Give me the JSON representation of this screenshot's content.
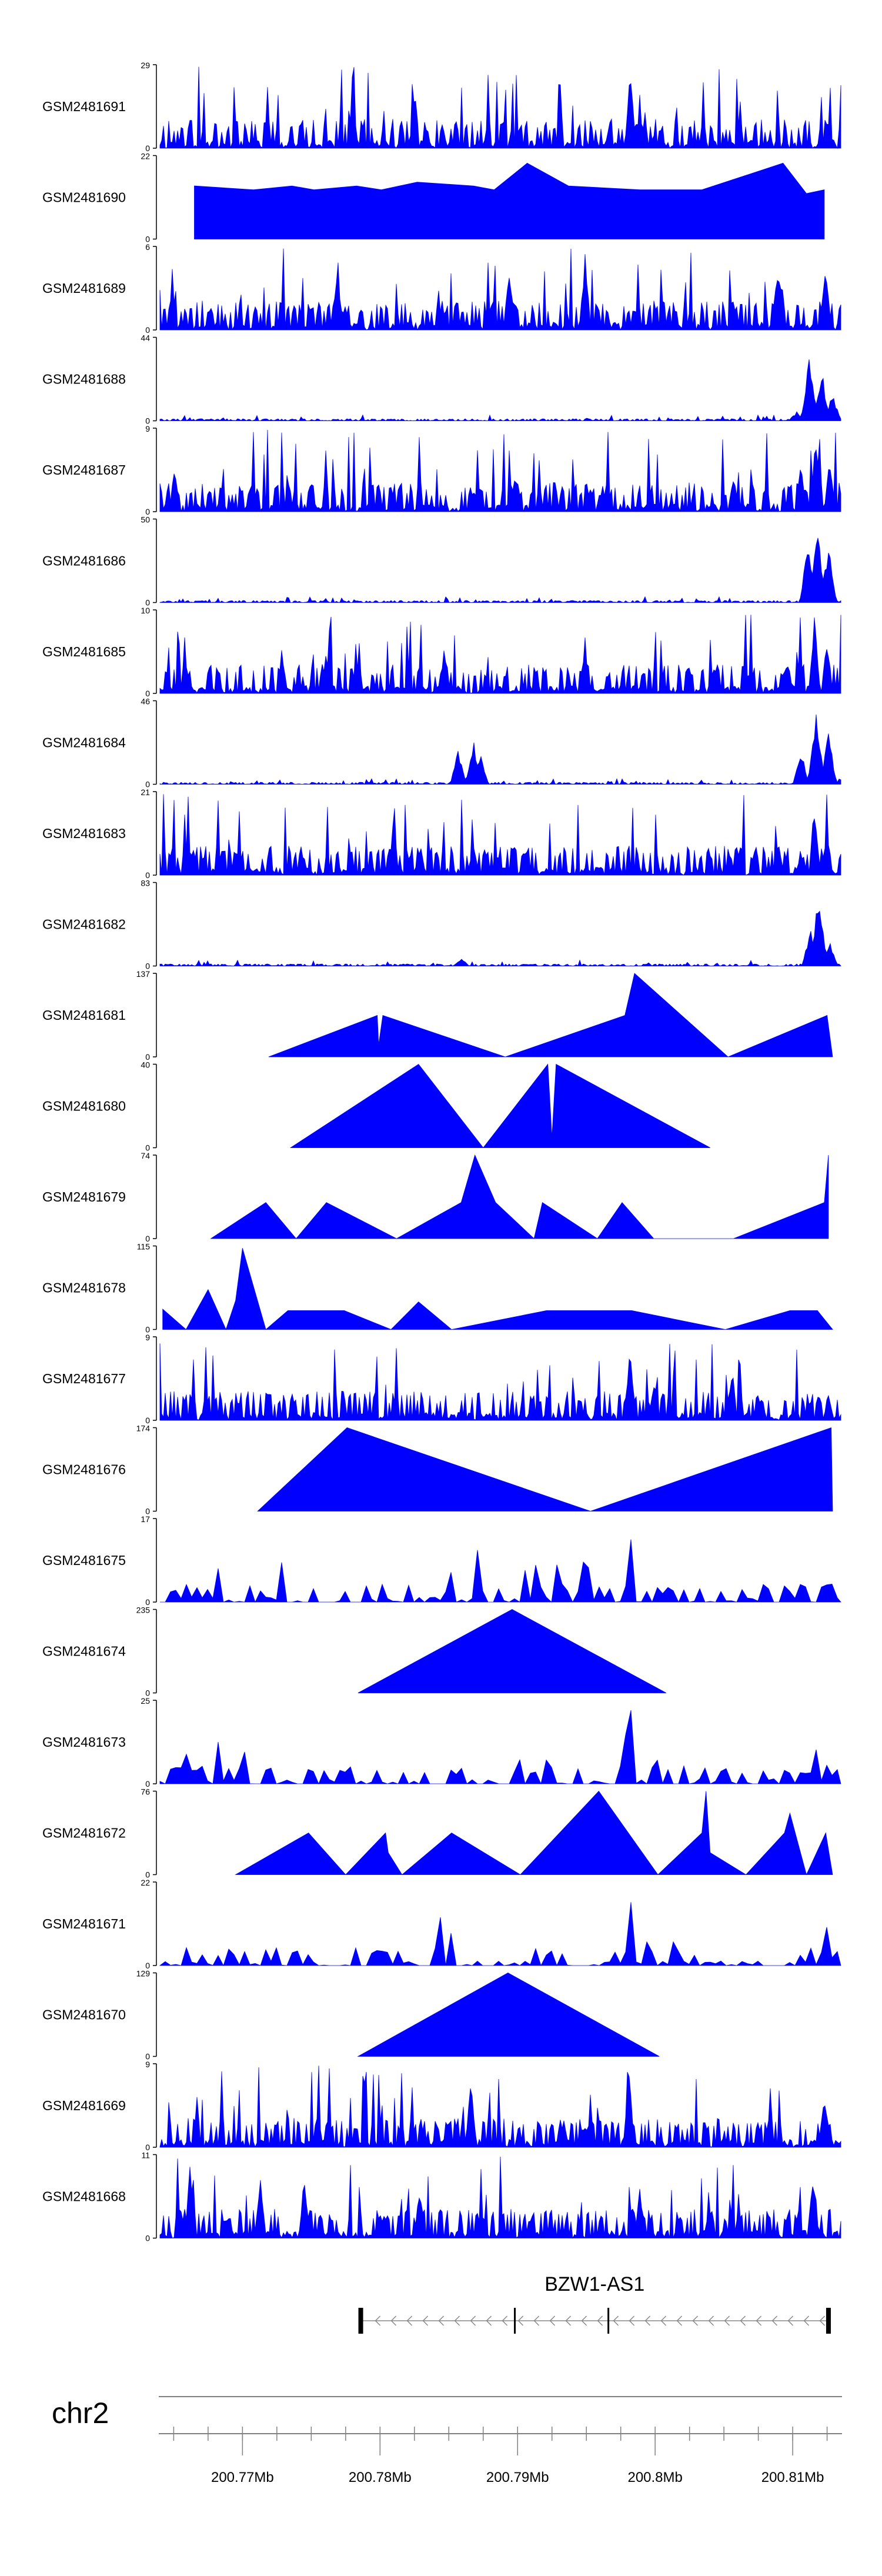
{
  "chart_data": {
    "type": "area",
    "title": "",
    "chromosome": "chr2",
    "xlim": [
      200.764,
      200.8135
    ],
    "x_unit": "Mb",
    "x_ticks": [
      200.77,
      200.78,
      200.79,
      200.8,
      200.81
    ],
    "x_tick_labels": [
      "200.77Mb",
      "200.78Mb",
      "200.79Mb",
      "200.8Mb",
      "200.81Mb"
    ],
    "gene": {
      "name": "BZW1-AS1",
      "start": 200.7786,
      "end": 200.8126,
      "strand": "-",
      "exons": [
        200.7786,
        200.7898,
        200.7966,
        200.8126
      ]
    },
    "tracks": [
      {
        "name": "GSM2481691",
        "ymax": 29,
        "peaks": [
          [
            200.7823,
            6
          ],
          [
            200.7982,
            28
          ],
          [
            200.7999,
            5
          ],
          [
            200.8126,
            9
          ]
        ],
        "pattern": "dense",
        "baseline": 2,
        "seed": 11
      },
      {
        "name": "GSM2481690",
        "ymax": 22,
        "peaks": [
          [
            200.7665,
            14
          ],
          [
            200.7708,
            13
          ],
          [
            200.7736,
            14
          ],
          [
            200.7752,
            13
          ],
          [
            200.7783,
            14
          ],
          [
            200.7801,
            13
          ],
          [
            200.7827,
            15
          ],
          [
            200.7868,
            14
          ],
          [
            200.7883,
            13
          ],
          [
            200.7907,
            20
          ],
          [
            200.7937,
            14
          ],
          [
            200.7989,
            13
          ],
          [
            200.7996,
            13
          ],
          [
            200.8034,
            13
          ],
          [
            200.8093,
            20
          ],
          [
            200.811,
            12
          ],
          [
            200.8123,
            13
          ]
        ],
        "pattern": "triangles",
        "baseline": 0,
        "seed": 12
      },
      {
        "name": "GSM2481689",
        "ymax": 6,
        "peaks": [
          [
            200.7769,
            5
          ],
          [
            200.7894,
            5
          ],
          [
            200.7949,
            6
          ],
          [
            200.8089,
            5
          ],
          [
            200.8124,
            5
          ]
        ],
        "pattern": "dense",
        "baseline": 1,
        "seed": 13
      },
      {
        "name": "GSM2481688",
        "ymax": 44,
        "peaks": [
          [
            200.8103,
            5
          ],
          [
            200.8112,
            35
          ],
          [
            200.8121,
            28
          ],
          [
            200.8129,
            15
          ]
        ],
        "pattern": "flat",
        "baseline": 1,
        "seed": 14
      },
      {
        "name": "GSM2481687",
        "ymax": 9,
        "peaks": [
          [
            200.7651,
            5
          ],
          [
            200.7707,
            4
          ],
          [
            200.7898,
            4
          ],
          [
            200.8057,
            4
          ],
          [
            200.8106,
            6
          ],
          [
            200.8117,
            9
          ],
          [
            200.8127,
            6
          ]
        ],
        "pattern": "dense",
        "baseline": 1,
        "seed": 15
      },
      {
        "name": "GSM2481686",
        "ymax": 50,
        "peaks": [
          [
            200.8111,
            40
          ],
          [
            200.8118,
            48
          ],
          [
            200.8126,
            35
          ]
        ],
        "pattern": "flat",
        "baseline": 1,
        "seed": 16
      },
      {
        "name": "GSM2481685",
        "ymax": 10,
        "peaks": [
          [
            200.7761,
            6
          ],
          [
            200.7847,
            6
          ],
          [
            200.7949,
            7
          ],
          [
            200.8096,
            5
          ],
          [
            200.8116,
            10
          ],
          [
            200.8125,
            7
          ]
        ],
        "pattern": "dense",
        "baseline": 1,
        "seed": 17
      },
      {
        "name": "GSM2481684",
        "ymax": 46,
        "peaks": [
          [
            200.7857,
            20
          ],
          [
            200.7868,
            24
          ],
          [
            200.7873,
            18
          ],
          [
            200.8106,
            20
          ],
          [
            200.8117,
            44
          ],
          [
            200.8126,
            30
          ]
        ],
        "pattern": "flat",
        "baseline": 1,
        "seed": 18
      },
      {
        "name": "GSM2481683",
        "ymax": 21,
        "peaks": [
          [
            200.7868,
            8
          ],
          [
            200.8106,
            6
          ],
          [
            200.8116,
            20
          ],
          [
            200.8125,
            12
          ]
        ],
        "pattern": "dense",
        "baseline": 1,
        "seed": 19
      },
      {
        "name": "GSM2481682",
        "ymax": 83,
        "peaks": [
          [
            200.7859,
            8
          ],
          [
            200.8113,
            40
          ],
          [
            200.8119,
            78
          ],
          [
            200.8127,
            25
          ]
        ],
        "pattern": "flat",
        "baseline": 1,
        "seed": 20
      },
      {
        "name": "GSM2481681",
        "ymax": 137,
        "peaks": [
          [
            200.7719,
            0
          ],
          [
            200.7798,
            68
          ],
          [
            200.7799,
            20
          ],
          [
            200.7802,
            68
          ],
          [
            200.7891,
            0
          ],
          [
            200.7978,
            68
          ],
          [
            200.7985,
            137
          ],
          [
            200.8053,
            0
          ],
          [
            200.8125,
            68
          ],
          [
            200.8129,
            0
          ]
        ],
        "pattern": "triangles",
        "baseline": 0,
        "seed": 21
      },
      {
        "name": "GSM2481680",
        "ymax": 40,
        "peaks": [
          [
            200.7735,
            0
          ],
          [
            200.7828,
            40
          ],
          [
            200.7875,
            0
          ],
          [
            200.7922,
            40
          ],
          [
            200.7925,
            5
          ],
          [
            200.7928,
            40
          ],
          [
            200.804,
            0
          ]
        ],
        "pattern": "triangles",
        "baseline": 0,
        "seed": 22
      },
      {
        "name": "GSM2481679",
        "ymax": 74,
        "peaks": [
          [
            200.7677,
            0
          ],
          [
            200.7717,
            32
          ],
          [
            200.7739,
            0
          ],
          [
            200.7761,
            32
          ],
          [
            200.7812,
            0
          ],
          [
            200.7859,
            32
          ],
          [
            200.7869,
            74
          ],
          [
            200.7884,
            32
          ],
          [
            200.7912,
            0
          ],
          [
            200.7918,
            32
          ],
          [
            200.7958,
            0
          ],
          [
            200.7976,
            32
          ],
          [
            200.7999,
            0
          ],
          [
            200.8057,
            0
          ],
          [
            200.8123,
            32
          ],
          [
            200.8126,
            74
          ]
        ],
        "pattern": "triangles",
        "baseline": 0,
        "seed": 23
      },
      {
        "name": "GSM2481678",
        "ymax": 115,
        "peaks": [
          [
            200.7642,
            28
          ],
          [
            200.7659,
            0
          ],
          [
            200.7675,
            55
          ],
          [
            200.7688,
            0
          ],
          [
            200.7695,
            40
          ],
          [
            200.77,
            112
          ],
          [
            200.7717,
            0
          ],
          [
            200.7733,
            26
          ],
          [
            200.7754,
            26
          ],
          [
            200.7774,
            26
          ],
          [
            200.7808,
            0
          ],
          [
            200.7828,
            38
          ],
          [
            200.7852,
            0
          ],
          [
            200.7921,
            26
          ],
          [
            200.7983,
            26
          ],
          [
            200.8051,
            0
          ],
          [
            200.8098,
            26
          ],
          [
            200.8106,
            26
          ],
          [
            200.8118,
            26
          ],
          [
            200.8129,
            0
          ]
        ],
        "pattern": "triangles",
        "baseline": 0,
        "seed": 24
      },
      {
        "name": "GSM2481677",
        "ymax": 9,
        "peaks": [
          [
            200.7982,
            9
          ],
          [
            200.7999,
            5
          ],
          [
            200.8126,
            3
          ]
        ],
        "pattern": "dense",
        "baseline": 1,
        "seed": 25
      },
      {
        "name": "GSM2481676",
        "ymax": 174,
        "peaks": [
          [
            200.7711,
            0
          ],
          [
            200.7776,
            174
          ],
          [
            200.7953,
            0
          ],
          [
            200.8128,
            174
          ],
          [
            200.8129,
            0
          ]
        ],
        "pattern": "triangles",
        "baseline": 0,
        "seed": 26
      },
      {
        "name": "GSM2481675",
        "ymax": 17,
        "peaks": [
          [
            200.7666,
            4
          ],
          [
            200.7851,
            8
          ],
          [
            200.7871,
            13
          ],
          [
            200.7982,
            17
          ],
          [
            200.8008,
            5
          ],
          [
            200.8079,
            5
          ],
          [
            200.8106,
            5
          ],
          [
            200.8125,
            5
          ]
        ],
        "pattern": "triangles_dense",
        "baseline": 0,
        "seed": 27
      },
      {
        "name": "GSM2481674",
        "ymax": 235,
        "peaks": [
          [
            200.7784,
            0
          ],
          [
            200.7896,
            235
          ],
          [
            200.8008,
            0
          ]
        ],
        "pattern": "triangles",
        "baseline": 0,
        "seed": 28
      },
      {
        "name": "GSM2481673",
        "ymax": 25,
        "peaks": [
          [
            200.7853,
            8
          ],
          [
            200.7982,
            25
          ],
          [
            200.8001,
            10
          ],
          [
            200.8126,
            8
          ]
        ],
        "pattern": "triangles_dense",
        "baseline": 0,
        "seed": 29
      },
      {
        "name": "GSM2481672",
        "ymax": 76,
        "peaks": [
          [
            200.7695,
            0
          ],
          [
            200.7748,
            38
          ],
          [
            200.7775,
            0
          ],
          [
            200.7804,
            38
          ],
          [
            200.7806,
            20
          ],
          [
            200.7816,
            0
          ],
          [
            200.7852,
            38
          ],
          [
            200.7902,
            0
          ],
          [
            200.7959,
            76
          ],
          [
            200.8002,
            0
          ],
          [
            200.8034,
            38
          ],
          [
            200.8037,
            76
          ],
          [
            200.804,
            20
          ],
          [
            200.8066,
            0
          ],
          [
            200.8094,
            38
          ],
          [
            200.8098,
            56
          ],
          [
            200.811,
            0
          ],
          [
            200.8124,
            38
          ],
          [
            200.8129,
            0
          ]
        ],
        "pattern": "triangles",
        "baseline": 0,
        "seed": 30
      },
      {
        "name": "GSM2481671",
        "ymax": 22,
        "peaks": [
          [
            200.7982,
            22
          ],
          [
            200.7994,
            7
          ],
          [
            200.8125,
            14
          ]
        ],
        "pattern": "triangles_dense",
        "baseline": 0,
        "seed": 31
      },
      {
        "name": "GSM2481670",
        "ymax": 129,
        "peaks": [
          [
            200.7784,
            0
          ],
          [
            200.7893,
            129
          ],
          [
            200.8003,
            0
          ]
        ],
        "pattern": "triangles",
        "baseline": 0,
        "seed": 32
      },
      {
        "name": "GSM2481669",
        "ymax": 9,
        "peaks": [
          [
            200.7866,
            8
          ],
          [
            200.7981,
            9
          ],
          [
            200.8123,
            7
          ]
        ],
        "pattern": "dense",
        "baseline": 1,
        "seed": 33
      },
      {
        "name": "GSM2481668",
        "ymax": 11,
        "peaks": [
          [
            200.7662,
            10
          ],
          [
            200.7713,
            9
          ],
          [
            200.7745,
            9
          ],
          [
            200.7829,
            8
          ],
          [
            200.7989,
            7
          ],
          [
            200.8115,
            10
          ]
        ],
        "pattern": "dense",
        "baseline": 1,
        "seed": 34
      }
    ]
  },
  "colors": {
    "fill": "#0000ff",
    "axis": "#000000",
    "gene": "#000000",
    "genome_axis": "#808080"
  }
}
